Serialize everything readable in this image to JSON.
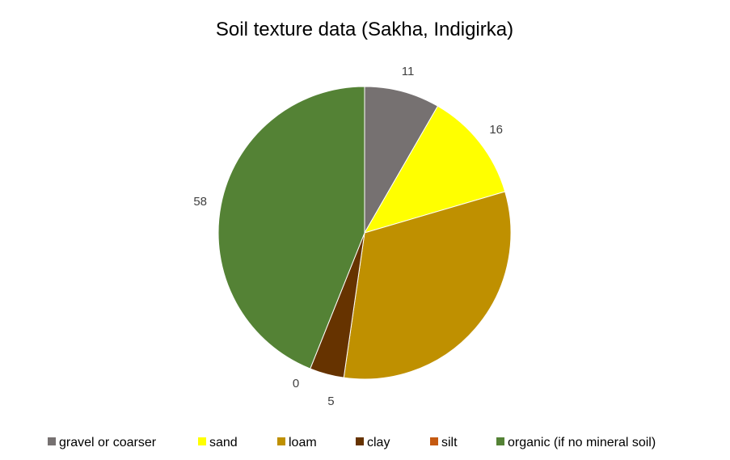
{
  "chart_data": {
    "type": "pie",
    "title": "Soil texture data (Sakha, Indigirka)",
    "categories": [
      "gravel or coarser",
      "sand",
      "loam",
      "clay",
      "silt",
      "organic (if no mineral soil)"
    ],
    "values": [
      11,
      16,
      42,
      5,
      0,
      58
    ],
    "data_labels": [
      "11",
      "16",
      "",
      "5",
      "0",
      "58"
    ],
    "colors": [
      "#767171",
      "#FFFF00",
      "#BF9000",
      "#663300",
      "#C55A11",
      "#548235"
    ],
    "legend_position": "bottom",
    "start_angle_deg": 0,
    "direction": "clockwise"
  }
}
